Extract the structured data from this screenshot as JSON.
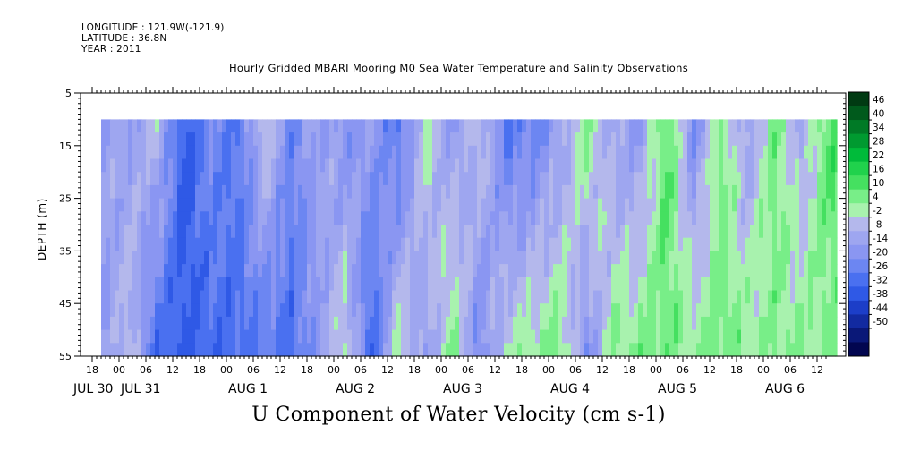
{
  "header": {
    "longitude": "LONGITUDE : 121.9W(-121.9)",
    "latitude": "LATITUDE : 36.8N",
    "year": "YEAR : 2011"
  },
  "chart_data": {
    "type": "heatmap",
    "title": "Hourly Gridded MBARI Mooring M0 Sea Water Temperature and Salinity Observations",
    "bottom_title": "U Component of Water Velocity (cm s-1)",
    "ylabel": "DEPTH (m)",
    "y_ticks": [
      "5",
      "15",
      "25",
      "35",
      "45",
      "55"
    ],
    "y_range": [
      5,
      55
    ],
    "y_inverted": true,
    "x_range_hours": [
      "JUL 30 18:00",
      "AUG 6 14:00"
    ],
    "hour_ticks": [
      "18",
      "00",
      "06",
      "12",
      "18",
      "00",
      "06",
      "12",
      "18",
      "00",
      "06",
      "12",
      "18",
      "00",
      "06",
      "12",
      "18",
      "00",
      "06",
      "12",
      "18",
      "00",
      "06",
      "12",
      "18",
      "00",
      "06",
      "12"
    ],
    "day_labels": [
      "JUL 30",
      "JUL 31",
      "AUG 1",
      "AUG 2",
      "AUG 3",
      "AUG 4",
      "AUG 5",
      "AUG 6"
    ],
    "colorbar_labels": [
      "46",
      "40",
      "34",
      "28",
      "22",
      "16",
      "10",
      "4",
      "-2",
      "-8",
      "-14",
      "-20",
      "-26",
      "-32",
      "-38",
      "-44",
      "-50"
    ],
    "colorbar_colors": [
      "#003a12",
      "#005a1c",
      "#007a26",
      "#009a30",
      "#00bb3a",
      "#20d24c",
      "#45e060",
      "#78ee88",
      "#a8f2ae",
      "#b4b8ec",
      "#9ea6f0",
      "#8a96f2",
      "#6c86f2",
      "#4a70f0",
      "#2f59e6",
      "#1c3ec8",
      "#122aa0",
      "#0a1878",
      "#020650"
    ],
    "profiles": [
      {
        "day": "JUL 30 20:00",
        "top": -6,
        "bottom": -10
      },
      {
        "day": "JUL 31 00:00",
        "top": -8,
        "bottom": 2
      },
      {
        "day": "JUL 31 06:00",
        "top": 2,
        "bottom": -24
      },
      {
        "day": "JUL 31 12:00",
        "top": -28,
        "bottom": -26
      },
      {
        "day": "JUL 31 18:00",
        "top": -14,
        "bottom": -24
      },
      {
        "day": "AUG 1 00:00",
        "top": -20,
        "bottom": -22
      },
      {
        "day": "AUG 1 06:00",
        "top": 4,
        "bottom": -20
      },
      {
        "day": "AUG 1 12:00",
        "top": -16,
        "bottom": -22
      },
      {
        "day": "AUG 1 18:00",
        "top": -6,
        "bottom": -10
      },
      {
        "day": "AUG 2 00:00",
        "top": -12,
        "bottom": 6
      },
      {
        "day": "AUG 2 06:00",
        "top": -8,
        "bottom": -26
      },
      {
        "day": "AUG 2 12:00",
        "top": -22,
        "bottom": 6
      },
      {
        "day": "AUG 2 18:00",
        "top": 6,
        "bottom": -10
      },
      {
        "day": "AUG 3 00:00",
        "top": -10,
        "bottom": 10
      },
      {
        "day": "AUG 3 06:00",
        "top": 4,
        "bottom": -16
      },
      {
        "day": "AUG 3 12:00",
        "top": -20,
        "bottom": 4
      },
      {
        "day": "AUG 3 18:00",
        "top": -18,
        "bottom": 8
      },
      {
        "day": "AUG 4 00:00",
        "top": -8,
        "bottom": 10
      },
      {
        "day": "AUG 4 06:00",
        "top": 10,
        "bottom": -12
      },
      {
        "day": "AUG 4 12:00",
        "top": -6,
        "bottom": 8
      },
      {
        "day": "AUG 4 18:00",
        "top": -10,
        "bottom": 10
      },
      {
        "day": "AUG 5 00:00",
        "top": 16,
        "bottom": 12
      },
      {
        "day": "AUG 5 06:00",
        "top": -14,
        "bottom": 8
      },
      {
        "day": "AUG 5 12:00",
        "top": 10,
        "bottom": 12
      },
      {
        "day": "AUG 5 18:00",
        "top": -8,
        "bottom": 10
      },
      {
        "day": "AUG 6 00:00",
        "top": 12,
        "bottom": 8
      },
      {
        "day": "AUG 6 06:00",
        "top": -6,
        "bottom": 10
      },
      {
        "day": "AUG 6 12:00",
        "top": 16,
        "bottom": 8
      }
    ]
  }
}
